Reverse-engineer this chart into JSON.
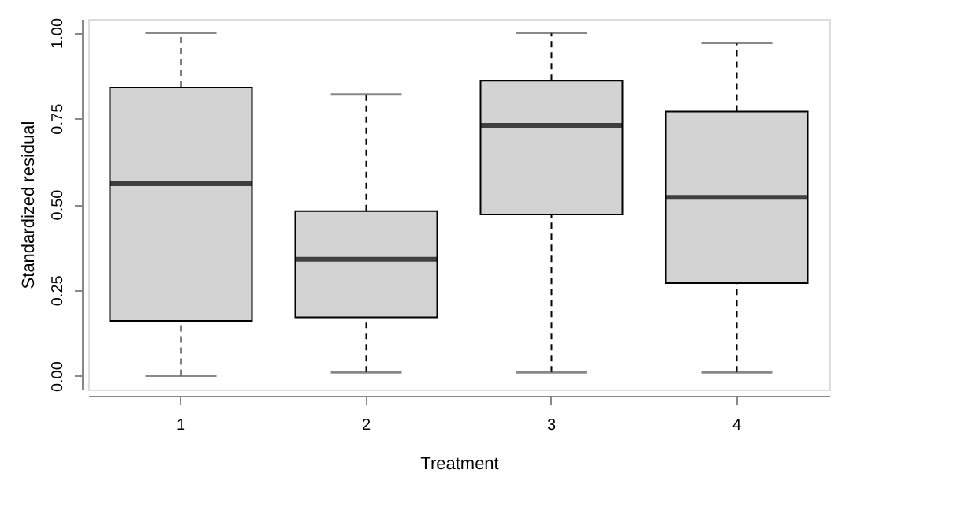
{
  "chart_data": {
    "type": "box",
    "xlabel": "Treatment",
    "ylabel": "Standardized residual",
    "categories": [
      "1",
      "2",
      "3",
      "4"
    ],
    "boxes": [
      {
        "low": 0.0,
        "q1": 0.16,
        "median": 0.56,
        "q3": 0.84,
        "high": 1.0
      },
      {
        "low": 0.01,
        "q1": 0.17,
        "median": 0.34,
        "q3": 0.48,
        "high": 0.82
      },
      {
        "low": 0.01,
        "q1": 0.47,
        "median": 0.73,
        "q3": 0.86,
        "high": 1.0
      },
      {
        "low": 0.01,
        "q1": 0.27,
        "median": 0.52,
        "q3": 0.77,
        "high": 0.97
      }
    ],
    "color": "#d3d3d3",
    "ylim": [
      -0.04,
      1.04
    ],
    "yticks": [
      {
        "value": 0,
        "label": "0.00"
      },
      {
        "value": 0.25,
        "label": "0.25"
      },
      {
        "value": 0.5,
        "label": "0.50"
      },
      {
        "value": 0.75,
        "label": "0.75"
      },
      {
        "value": 1,
        "label": "1.00"
      }
    ],
    "grid": false
  }
}
